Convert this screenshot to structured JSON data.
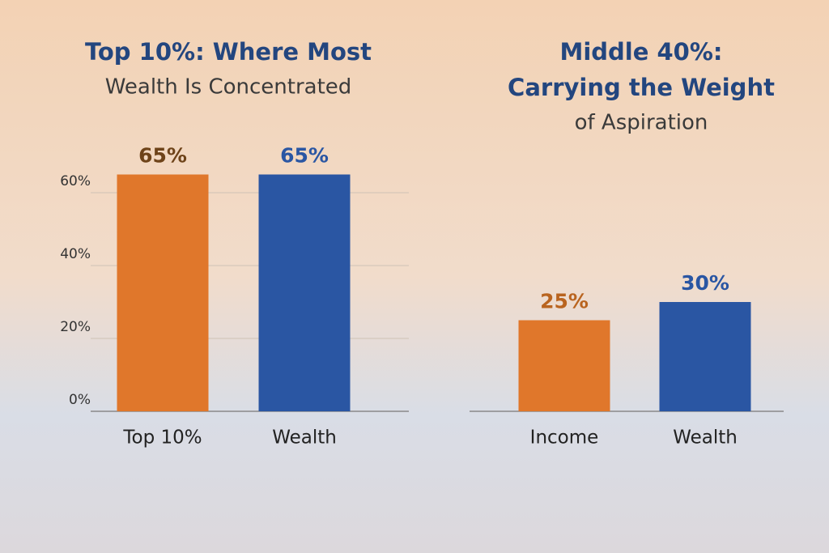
{
  "chart_data": [
    {
      "type": "bar",
      "title": [
        "Top 10%: Where Most"
      ],
      "subtitle": "Wealth Is Concentrated",
      "categories": [
        "Top 10%",
        "Wealth"
      ],
      "values": [
        65,
        65
      ],
      "value_labels": [
        "65%",
        "65%"
      ],
      "colors": [
        "#e0772b",
        "#2a56a3"
      ],
      "label_colors": [
        "#6e4319",
        "#2a56a3"
      ],
      "ylim": [
        0,
        75
      ],
      "yticks": [
        {
          "value": 0,
          "label": "0%"
        },
        {
          "value": 20,
          "label": "20%"
        },
        {
          "value": 40,
          "label": "40%"
        },
        {
          "value": 60,
          "label": "60%"
        }
      ],
      "grid": true
    },
    {
      "type": "bar",
      "title": [
        "Middle 40%:",
        "Carrying the Weight"
      ],
      "subtitle": "of Aspiration",
      "categories": [
        "Income",
        "Wealth"
      ],
      "values": [
        25,
        30
      ],
      "value_labels": [
        "25%",
        "30%"
      ],
      "colors": [
        "#e0772b",
        "#2a56a3"
      ],
      "label_colors": [
        "#b9641f",
        "#2a56a3"
      ],
      "ylim": [
        0,
        75
      ],
      "grid": false
    }
  ]
}
